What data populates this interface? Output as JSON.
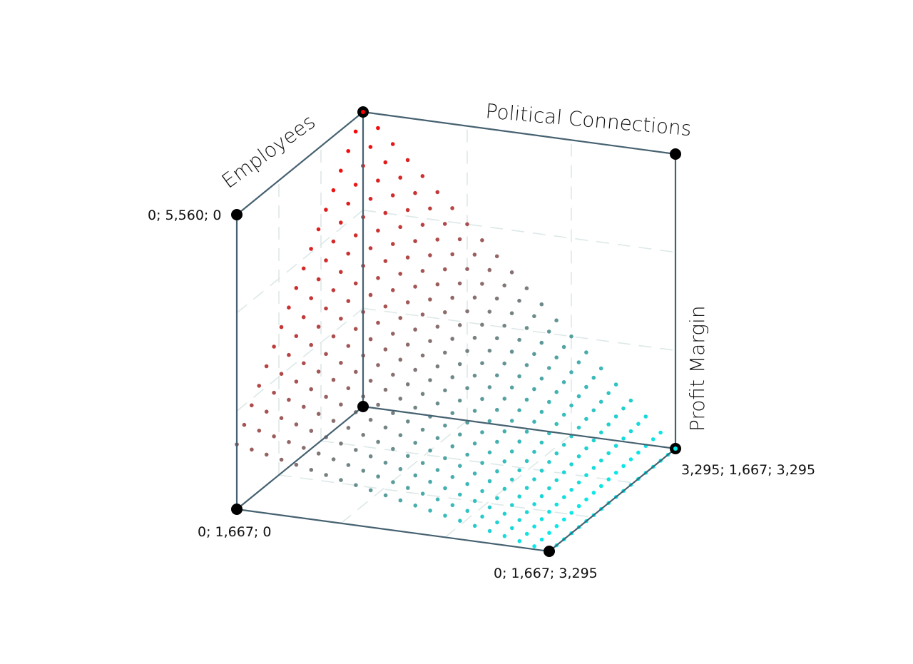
{
  "chart_data": {
    "type": "scatter",
    "title": "",
    "axes": {
      "x": {
        "label": "Employees",
        "range": [
          1667,
          5560
        ]
      },
      "y": {
        "label": "Political Connections",
        "range": [
          0,
          3295
        ]
      },
      "z": {
        "label": "Profit Margin",
        "range": [
          0,
          3295
        ]
      }
    },
    "corner_labels": [
      "0; 5,560; 0",
      "0; 1,667; 0",
      "0; 1,667; 3,295",
      "3,295; 1,667; 3,295"
    ],
    "surface": {
      "description_rows": 18,
      "description_cols": 22,
      "color_low": "#00f0f0",
      "color_high": "#ff0000"
    },
    "grid": true,
    "legend": "none"
  }
}
